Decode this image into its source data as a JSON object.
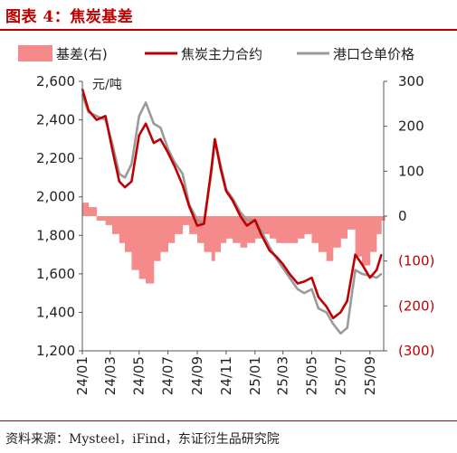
{
  "figure": {
    "title": "图表 4：焦炭基差",
    "source": "资料来源：Mysteel，iFind，东证衍生品研究院"
  },
  "colors": {
    "basis": "#f58a8a",
    "futures": "#c00000",
    "spot": "#9a9a9a",
    "title": "#c00000"
  },
  "chart_data": {
    "type": "line",
    "unit_label": "元/吨",
    "x_ticks": [
      "24/01",
      "24/03",
      "24/05",
      "24/07",
      "24/09",
      "24/11",
      "25/01",
      "25/03",
      "25/05",
      "25/07",
      "25/09"
    ],
    "y_left": {
      "min": 1200,
      "max": 2600,
      "ticks": [
        "1,200",
        "1,400",
        "1,600",
        "1,800",
        "2,000",
        "2,200",
        "2,400",
        "2,600"
      ]
    },
    "y_right": {
      "min": -300,
      "max": 300,
      "ticks": [
        "(300)",
        "(200)",
        "(100)",
        "0",
        "100",
        "200",
        "300"
      ]
    },
    "legend_position": "top",
    "x": [
      "2024-01-02",
      "2024-01-15",
      "2024-02-01",
      "2024-02-20",
      "2024-03-05",
      "2024-03-20",
      "2024-04-01",
      "2024-04-15",
      "2024-05-01",
      "2024-05-15",
      "2024-06-01",
      "2024-06-15",
      "2024-07-01",
      "2024-07-15",
      "2024-08-01",
      "2024-08-15",
      "2024-09-01",
      "2024-09-15",
      "2024-10-01",
      "2024-10-08",
      "2024-10-20",
      "2024-11-01",
      "2024-11-15",
      "2024-12-01",
      "2024-12-15",
      "2025-01-01",
      "2025-01-15",
      "2025-02-01",
      "2025-02-15",
      "2025-03-01",
      "2025-03-15",
      "2025-04-01",
      "2025-04-15",
      "2025-05-01",
      "2025-05-15",
      "2025-06-01",
      "2025-06-15",
      "2025-07-01",
      "2025-07-15",
      "2025-08-01",
      "2025-08-15",
      "2025-09-01",
      "2025-09-15",
      "2025-09-25"
    ],
    "series": [
      {
        "name": "基差(右)",
        "axis": "right",
        "kind": "area",
        "values": [
          30,
          20,
          -10,
          -20,
          -40,
          -60,
          -80,
          -120,
          -140,
          -150,
          -100,
          -80,
          -60,
          -40,
          -20,
          -40,
          -60,
          -80,
          -100,
          -80,
          -60,
          -50,
          -60,
          -70,
          -60,
          -50,
          -40,
          -50,
          -60,
          -60,
          -60,
          -50,
          -40,
          -60,
          -80,
          -100,
          -70,
          -50,
          -30,
          -90,
          -110,
          -80,
          -40,
          -10
        ]
      },
      {
        "name": "焦炭主力合约",
        "axis": "left",
        "kind": "line",
        "values": [
          2560,
          2450,
          2400,
          2420,
          2250,
          2080,
          2050,
          2080,
          2320,
          2380,
          2280,
          2300,
          2230,
          2160,
          2060,
          1950,
          1850,
          1860,
          2150,
          2300,
          2150,
          2030,
          1980,
          1900,
          1850,
          1880,
          1800,
          1720,
          1690,
          1650,
          1600,
          1550,
          1560,
          1580,
          1480,
          1430,
          1370,
          1400,
          1460,
          1700,
          1650,
          1580,
          1620,
          1700
        ]
      },
      {
        "name": "港口仓单价格",
        "axis": "left",
        "kind": "line",
        "values": [
          2530,
          2440,
          2420,
          2400,
          2280,
          2120,
          2100,
          2170,
          2420,
          2490,
          2380,
          2360,
          2250,
          2180,
          2120,
          1960,
          1880,
          1860,
          2130,
          2300,
          2170,
          2040,
          1990,
          1920,
          1880,
          1880,
          1820,
          1740,
          1680,
          1630,
          1580,
          1520,
          1500,
          1520,
          1420,
          1400,
          1340,
          1290,
          1320,
          1620,
          1600,
          1590,
          1580,
          1600
        ]
      }
    ]
  }
}
